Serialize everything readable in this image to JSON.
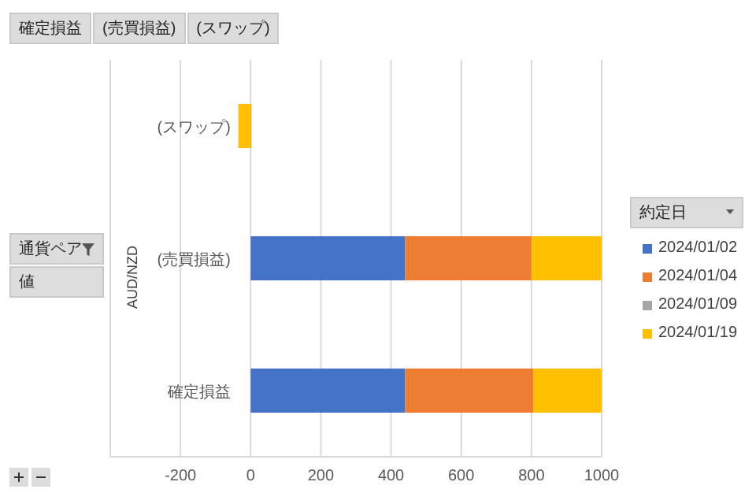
{
  "chart_data": {
    "type": "bar",
    "orientation": "horizontal",
    "stacked": true,
    "categories": [
      "(スワップ)",
      "(売買損益)",
      "確定損益"
    ],
    "ylabel": "AUD/NZD",
    "legend_title": "約定日",
    "series": [
      {
        "name": "2024/01/02",
        "color": "#4472c4",
        "values": [
          0,
          440,
          440
        ]
      },
      {
        "name": "2024/01/04",
        "color": "#ed7d31",
        "values": [
          2,
          360,
          365
        ]
      },
      {
        "name": "2024/01/09",
        "color": "#a5a5a5",
        "values": [
          0,
          0,
          0
        ]
      },
      {
        "name": "2024/01/19",
        "color": "#ffc000",
        "values": [
          -35,
          200,
          195
        ]
      }
    ],
    "xlim": [
      -400,
      1000
    ],
    "xticks": [
      -200,
      0,
      200,
      400,
      600,
      800,
      1000
    ],
    "grid": "x",
    "legend": "right",
    "annotations": [
      "確定損益",
      "(売買損益)",
      "(スワップ)",
      "通貨ペア",
      "値"
    ]
  }
}
